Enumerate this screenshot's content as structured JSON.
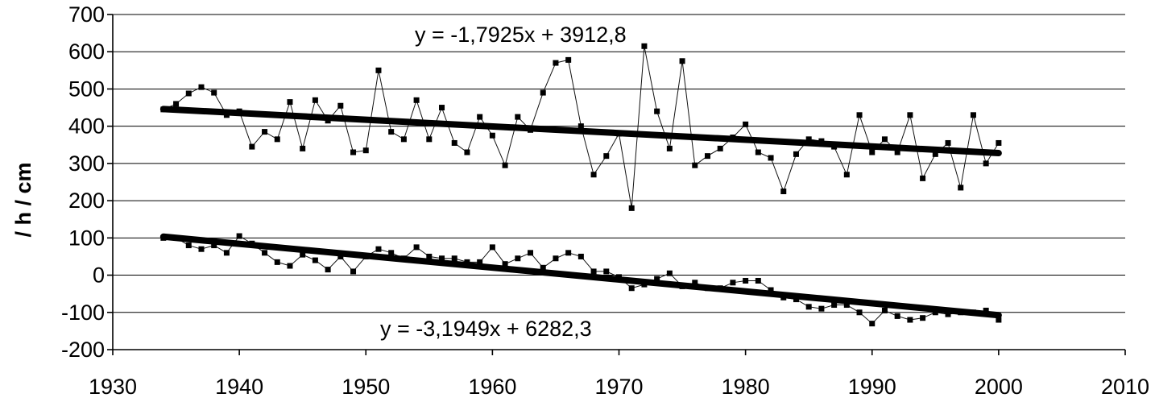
{
  "chart_data": {
    "type": "line",
    "title": "",
    "xlabel": "",
    "ylabel": "/ h / cm",
    "xlim": [
      1930,
      2010
    ],
    "ylim": [
      -200,
      700
    ],
    "x_ticks": [
      "1930",
      "1940",
      "1950",
      "1960",
      "1970",
      "1980",
      "1990",
      "2000",
      "2010"
    ],
    "y_ticks": [
      "-200",
      "-100",
      "0",
      "100",
      "200",
      "300",
      "400",
      "500",
      "600",
      "700"
    ],
    "grid": "horizontal",
    "series": [
      {
        "x": [
          1934,
          1935,
          1936,
          1937,
          1938,
          1939,
          1940,
          1941,
          1942,
          1943,
          1944,
          1945,
          1946,
          1947,
          1948,
          1949,
          1950,
          1951,
          1952,
          1953,
          1954,
          1955,
          1956,
          1957,
          1958,
          1959,
          1960,
          1961,
          1962,
          1963,
          1964,
          1965,
          1966,
          1967,
          1968,
          1969,
          1970,
          1971,
          1972,
          1973,
          1974,
          1975,
          1976,
          1977,
          1978,
          1979,
          1980,
          1981,
          1982,
          1983,
          1984,
          1985,
          1986,
          1987,
          1988,
          1989,
          1990,
          1991,
          1992,
          1993,
          1994,
          1995,
          1996,
          1997,
          1998,
          1999,
          2000
        ],
        "values": [
          445,
          460,
          488,
          505,
          490,
          430,
          440,
          345,
          385,
          365,
          465,
          340,
          470,
          415,
          455,
          330,
          335,
          550,
          385,
          365,
          470,
          365,
          450,
          355,
          330,
          425,
          375,
          295,
          425,
          390,
          490,
          570,
          578,
          400,
          270,
          320,
          380,
          180,
          615,
          440,
          340,
          575,
          295,
          320,
          340,
          370,
          405,
          330,
          315,
          225,
          325,
          365,
          360,
          345,
          270,
          430,
          330,
          365,
          330,
          430,
          260,
          325,
          355,
          235,
          430,
          300,
          355
        ]
      },
      {
        "x": [
          1934,
          1935,
          1936,
          1937,
          1938,
          1939,
          1940,
          1941,
          1942,
          1943,
          1944,
          1945,
          1946,
          1947,
          1948,
          1949,
          1950,
          1951,
          1952,
          1953,
          1954,
          1955,
          1956,
          1957,
          1958,
          1959,
          1960,
          1961,
          1962,
          1963,
          1964,
          1965,
          1966,
          1967,
          1968,
          1969,
          1970,
          1971,
          1972,
          1973,
          1974,
          1975,
          1976,
          1977,
          1978,
          1979,
          1980,
          1981,
          1982,
          1983,
          1984,
          1985,
          1986,
          1987,
          1988,
          1989,
          1990,
          1991,
          1992,
          1993,
          1994,
          1995,
          1996,
          1997,
          1998,
          1999,
          2000
        ],
        "values": [
          100,
          100,
          80,
          70,
          80,
          60,
          105,
          85,
          60,
          35,
          25,
          55,
          40,
          15,
          50,
          10,
          50,
          70,
          60,
          45,
          75,
          50,
          45,
          45,
          35,
          35,
          75,
          30,
          45,
          60,
          20,
          45,
          60,
          50,
          10,
          10,
          -5,
          -35,
          -25,
          -10,
          5,
          -30,
          -20,
          -35,
          -35,
          -20,
          -15,
          -15,
          -40,
          -60,
          -65,
          -85,
          -90,
          -80,
          -80,
          -100,
          -130,
          -95,
          -110,
          -120,
          -115,
          -100,
          -105,
          -100,
          -100,
          -95,
          -120
        ]
      }
    ],
    "trendlines": [
      {
        "equation": "y = -1,7925x + 3912,8",
        "slope": -1.7925,
        "intercept": 3912.8,
        "x_range": [
          1934,
          2000
        ]
      },
      {
        "equation": "y = -3,1949x + 6282,3",
        "slope": -3.1949,
        "intercept": 6282.3,
        "x_range": [
          1934,
          2000
        ]
      }
    ]
  }
}
